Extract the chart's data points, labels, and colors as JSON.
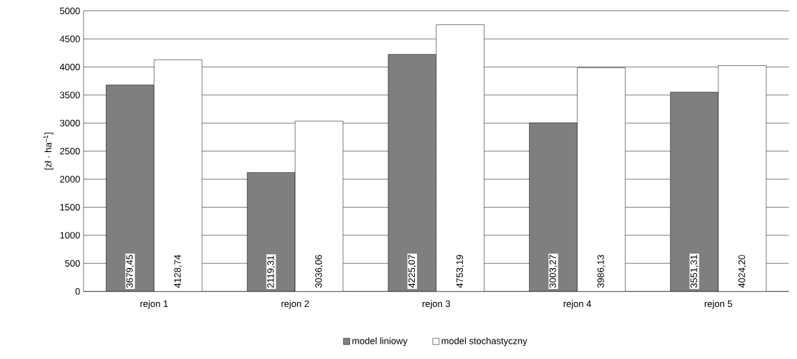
{
  "chart_data": {
    "type": "bar",
    "ylabel": "[zł · ha$^{–1}$]",
    "categories": [
      "rejon 1",
      "rejon 2",
      "rejon 3",
      "rejon 4",
      "rejon 5"
    ],
    "series": [
      {
        "name": "model liniowy",
        "color": "#7f7f7f",
        "values": [
          3679.45,
          2119.31,
          4225.07,
          3003.27,
          3551.31
        ],
        "value_labels": [
          "3679,45",
          "2119,31",
          "4225,07",
          "3003,27",
          "3551,31"
        ]
      },
      {
        "name": "model stochastyczny",
        "color": "#ffffff",
        "values": [
          4128.74,
          3036.06,
          4753.19,
          3986.13,
          4024.2
        ],
        "value_labels": [
          "4128,74",
          "3036,06",
          "4753,19",
          "3986,13",
          "4024,20"
        ]
      }
    ],
    "ylim": [
      0,
      5000
    ],
    "yticks": [
      0,
      500,
      1000,
      1500,
      2000,
      2500,
      3000,
      3500,
      4000,
      4500,
      5000
    ],
    "grid": "y",
    "legend": "bottom"
  }
}
